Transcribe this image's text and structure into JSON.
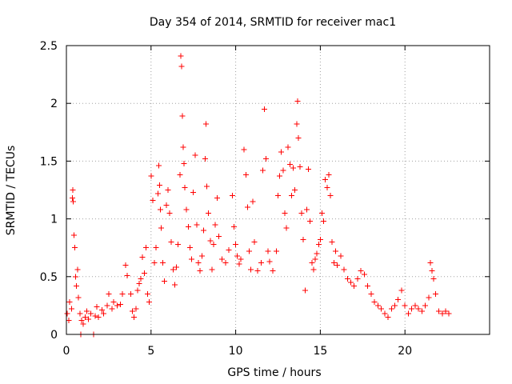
{
  "chart_data": {
    "type": "scatter",
    "title": "Day 354 of 2014, SRMTID for receiver mac1",
    "xlabel": "GPS time / hours",
    "ylabel": "SRMTID / TECUs",
    "xlim": [
      0,
      25
    ],
    "ylim": [
      0,
      2.5
    ],
    "x_ticks": [
      {
        "value": 0,
        "label": "0"
      },
      {
        "value": 5,
        "label": "5"
      },
      {
        "value": 10,
        "label": "10"
      },
      {
        "value": 15,
        "label": "15"
      },
      {
        "value": 20,
        "label": "20"
      }
    ],
    "y_ticks": [
      {
        "value": 0,
        "label": "0"
      },
      {
        "value": 0.5,
        "label": "0.5"
      },
      {
        "value": 1,
        "label": "1"
      },
      {
        "value": 1.5,
        "label": "1.5"
      },
      {
        "value": 2,
        "label": "2"
      },
      {
        "value": 2.5,
        "label": "2.5"
      }
    ],
    "grid": true,
    "marker": "+",
    "color": "#ff0000",
    "series": [
      {
        "name": "SRMTID",
        "points": [
          [
            0.05,
            0.18
          ],
          [
            0.15,
            0.12
          ],
          [
            0.2,
            0.28
          ],
          [
            0.3,
            0.22
          ],
          [
            0.35,
            1.18
          ],
          [
            0.38,
            1.25
          ],
          [
            0.4,
            1.15
          ],
          [
            0.45,
            0.86
          ],
          [
            0.5,
            0.75
          ],
          [
            0.55,
            0.5
          ],
          [
            0.6,
            0.42
          ],
          [
            0.65,
            0.56
          ],
          [
            0.7,
            0.32
          ],
          [
            0.8,
            0.18
          ],
          [
            0.85,
            0.0
          ],
          [
            0.9,
            0.12
          ],
          [
            1.0,
            0.09
          ],
          [
            1.1,
            0.15
          ],
          [
            1.2,
            0.2
          ],
          [
            1.3,
            0.13
          ],
          [
            1.45,
            0.18
          ],
          [
            1.6,
            0.0
          ],
          [
            1.7,
            0.16
          ],
          [
            1.8,
            0.24
          ],
          [
            1.9,
            0.15
          ],
          [
            2.1,
            0.21
          ],
          [
            2.2,
            0.18
          ],
          [
            2.4,
            0.25
          ],
          [
            2.5,
            0.35
          ],
          [
            2.7,
            0.22
          ],
          [
            2.8,
            0.28
          ],
          [
            3.0,
            0.25
          ],
          [
            3.2,
            0.26
          ],
          [
            3.3,
            0.35
          ],
          [
            3.5,
            0.6
          ],
          [
            3.6,
            0.51
          ],
          [
            3.8,
            0.35
          ],
          [
            3.9,
            0.2
          ],
          [
            4.0,
            0.15
          ],
          [
            4.1,
            0.22
          ],
          [
            4.2,
            0.38
          ],
          [
            4.3,
            0.44
          ],
          [
            4.4,
            0.48
          ],
          [
            4.5,
            0.67
          ],
          [
            4.6,
            0.53
          ],
          [
            4.7,
            0.75
          ],
          [
            4.8,
            0.35
          ],
          [
            4.9,
            0.28
          ],
          [
            5.0,
            1.37
          ],
          [
            5.1,
            1.16
          ],
          [
            5.2,
            0.62
          ],
          [
            5.3,
            0.75
          ],
          [
            5.4,
            1.22
          ],
          [
            5.45,
            1.46
          ],
          [
            5.5,
            1.29
          ],
          [
            5.55,
            1.08
          ],
          [
            5.6,
            0.92
          ],
          [
            5.7,
            0.62
          ],
          [
            5.8,
            0.46
          ],
          [
            5.9,
            1.12
          ],
          [
            6.0,
            1.25
          ],
          [
            6.1,
            1.05
          ],
          [
            6.2,
            0.8
          ],
          [
            6.3,
            0.56
          ],
          [
            6.4,
            0.43
          ],
          [
            6.5,
            0.58
          ],
          [
            6.6,
            0.78
          ],
          [
            6.7,
            1.38
          ],
          [
            6.75,
            2.41
          ],
          [
            6.8,
            2.32
          ],
          [
            6.85,
            1.89
          ],
          [
            6.9,
            1.62
          ],
          [
            6.95,
            1.48
          ],
          [
            7.0,
            1.27
          ],
          [
            7.1,
            1.08
          ],
          [
            7.2,
            0.93
          ],
          [
            7.3,
            0.75
          ],
          [
            7.4,
            0.65
          ],
          [
            7.5,
            1.23
          ],
          [
            7.6,
            1.55
          ],
          [
            7.7,
            0.95
          ],
          [
            7.8,
            0.62
          ],
          [
            7.9,
            0.55
          ],
          [
            8.0,
            0.68
          ],
          [
            8.1,
            0.9
          ],
          [
            8.2,
            1.52
          ],
          [
            8.25,
            1.82
          ],
          [
            8.3,
            1.28
          ],
          [
            8.4,
            1.05
          ],
          [
            8.5,
            0.81
          ],
          [
            8.6,
            0.56
          ],
          [
            8.7,
            0.78
          ],
          [
            8.8,
            0.95
          ],
          [
            8.9,
            1.18
          ],
          [
            9.0,
            0.85
          ],
          [
            9.2,
            0.65
          ],
          [
            9.4,
            0.62
          ],
          [
            9.6,
            0.73
          ],
          [
            9.8,
            1.2
          ],
          [
            9.9,
            0.93
          ],
          [
            10.0,
            0.78
          ],
          [
            10.1,
            0.68
          ],
          [
            10.2,
            0.61
          ],
          [
            10.3,
            0.65
          ],
          [
            10.5,
            1.6
          ],
          [
            10.6,
            1.38
          ],
          [
            10.7,
            1.1
          ],
          [
            10.8,
            0.72
          ],
          [
            10.9,
            0.56
          ],
          [
            11.0,
            1.15
          ],
          [
            11.1,
            0.8
          ],
          [
            11.3,
            0.55
          ],
          [
            11.5,
            0.62
          ],
          [
            11.6,
            1.42
          ],
          [
            11.7,
            1.95
          ],
          [
            11.8,
            1.52
          ],
          [
            11.9,
            0.72
          ],
          [
            12.0,
            0.63
          ],
          [
            12.2,
            0.55
          ],
          [
            12.4,
            0.72
          ],
          [
            12.5,
            1.2
          ],
          [
            12.6,
            1.37
          ],
          [
            12.7,
            1.58
          ],
          [
            12.8,
            1.42
          ],
          [
            12.9,
            1.05
          ],
          [
            13.0,
            0.92
          ],
          [
            13.1,
            1.62
          ],
          [
            13.2,
            1.47
          ],
          [
            13.3,
            1.2
          ],
          [
            13.4,
            1.44
          ],
          [
            13.5,
            1.25
          ],
          [
            13.6,
            1.82
          ],
          [
            13.65,
            2.02
          ],
          [
            13.7,
            1.7
          ],
          [
            13.8,
            1.45
          ],
          [
            13.9,
            1.05
          ],
          [
            14.0,
            0.82
          ],
          [
            14.1,
            0.38
          ],
          [
            14.2,
            1.08
          ],
          [
            14.3,
            1.43
          ],
          [
            14.4,
            0.98
          ],
          [
            14.5,
            0.62
          ],
          [
            14.6,
            0.56
          ],
          [
            14.7,
            0.65
          ],
          [
            14.8,
            0.7
          ],
          [
            14.9,
            0.78
          ],
          [
            15.0,
            0.82
          ],
          [
            15.1,
            1.05
          ],
          [
            15.2,
            0.98
          ],
          [
            15.3,
            1.34
          ],
          [
            15.4,
            1.27
          ],
          [
            15.5,
            1.38
          ],
          [
            15.6,
            1.2
          ],
          [
            15.7,
            0.8
          ],
          [
            15.8,
            0.62
          ],
          [
            15.9,
            0.72
          ],
          [
            16.0,
            0.6
          ],
          [
            16.2,
            0.68
          ],
          [
            16.4,
            0.56
          ],
          [
            16.6,
            0.48
          ],
          [
            16.8,
            0.45
          ],
          [
            17.0,
            0.42
          ],
          [
            17.2,
            0.48
          ],
          [
            17.4,
            0.55
          ],
          [
            17.6,
            0.52
          ],
          [
            17.8,
            0.42
          ],
          [
            18.0,
            0.35
          ],
          [
            18.2,
            0.28
          ],
          [
            18.4,
            0.25
          ],
          [
            18.6,
            0.22
          ],
          [
            18.8,
            0.18
          ],
          [
            19.0,
            0.15
          ],
          [
            19.2,
            0.22
          ],
          [
            19.4,
            0.25
          ],
          [
            19.6,
            0.3
          ],
          [
            19.8,
            0.38
          ],
          [
            20.0,
            0.25
          ],
          [
            20.2,
            0.18
          ],
          [
            20.4,
            0.22
          ],
          [
            20.6,
            0.25
          ],
          [
            20.8,
            0.22
          ],
          [
            21.0,
            0.2
          ],
          [
            21.2,
            0.25
          ],
          [
            21.4,
            0.32
          ],
          [
            21.5,
            0.62
          ],
          [
            21.6,
            0.55
          ],
          [
            21.7,
            0.48
          ],
          [
            21.8,
            0.35
          ],
          [
            22.0,
            0.2
          ],
          [
            22.2,
            0.18
          ],
          [
            22.4,
            0.2
          ],
          [
            22.6,
            0.18
          ]
        ]
      }
    ]
  }
}
